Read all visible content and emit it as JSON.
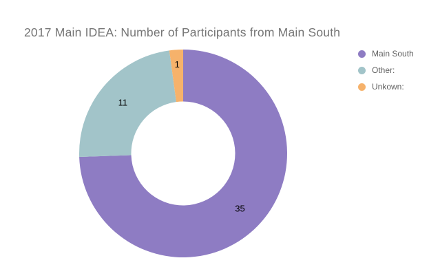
{
  "chart_data": {
    "type": "pie",
    "title": "2017 Main IDEA: Number of Participants from Main South",
    "series": [
      {
        "label": "Main South",
        "value": 35,
        "color": "#8e7cc3"
      },
      {
        "label": "Other:",
        "value": 11,
        "color": "#a2c4c9"
      },
      {
        "label": "Unkown:",
        "value": 1,
        "color": "#f6b26b"
      }
    ],
    "hole_ratio": 0.5,
    "direction": "clockwise",
    "start_angle_deg": 0,
    "value_labels": "inside",
    "legend_position": "right",
    "colors": {
      "title_text": "#757575",
      "legend_text": "#616161",
      "value_label": "#000000",
      "background": "#ffffff"
    }
  }
}
